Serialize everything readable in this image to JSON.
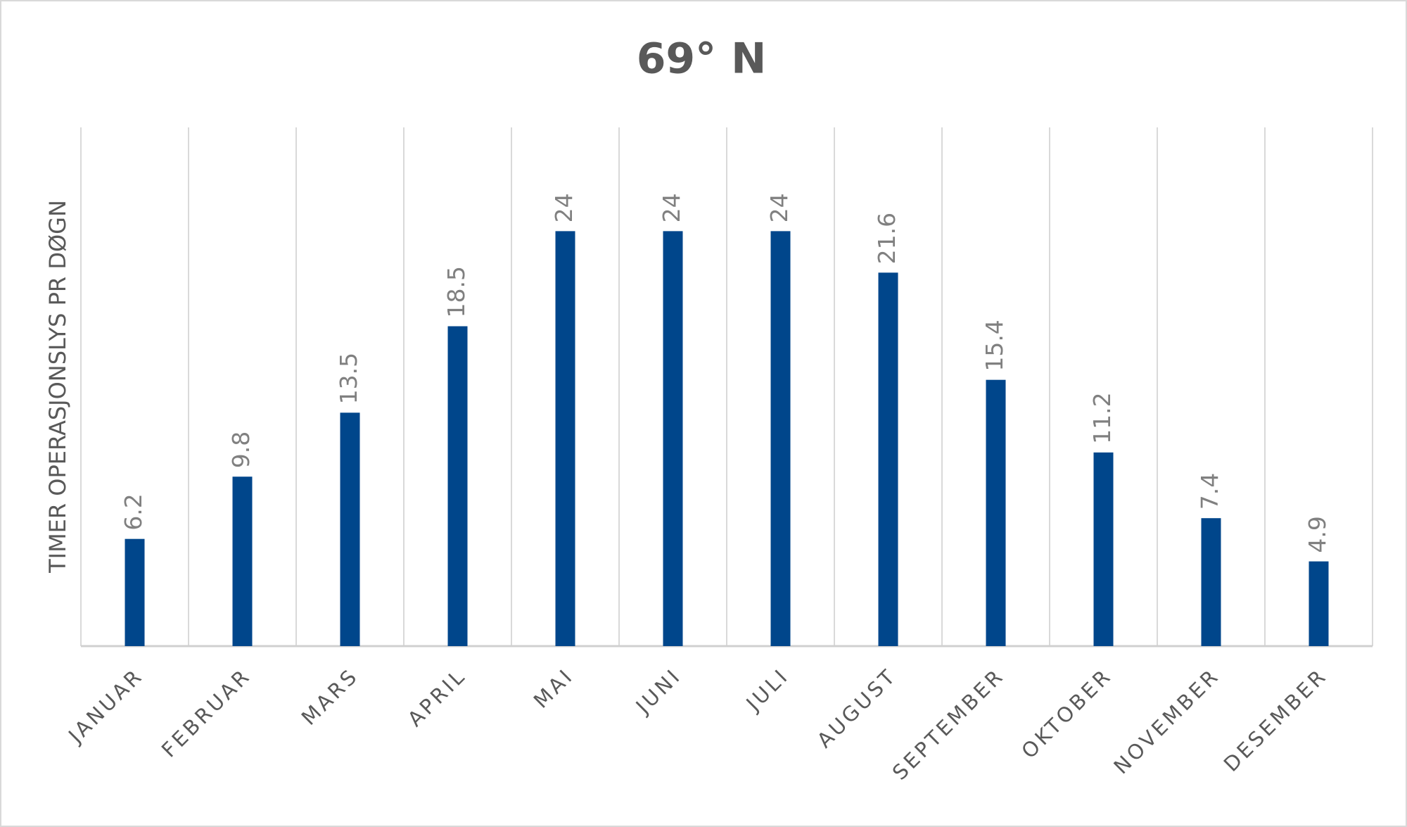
{
  "chart_data": {
    "type": "bar",
    "title": "69° N",
    "y_label": "TIMER OPERASJONSLYS PR DØGN",
    "categories": [
      "JANUAR",
      "FEBRUAR",
      "MARS",
      "APRIL",
      "MAI",
      "JUNI",
      "JULI",
      "AUGUST",
      "SEPTEMBER",
      "OKTOBER",
      "NOVEMBER",
      "DESEMBER"
    ],
    "values": [
      6.2,
      9.8,
      13.5,
      18.5,
      24,
      24,
      24,
      21.6,
      15.4,
      11.2,
      7.4,
      4.9
    ],
    "color": "#00468b",
    "ylim": [
      0,
      30
    ],
    "data_labels": true
  }
}
